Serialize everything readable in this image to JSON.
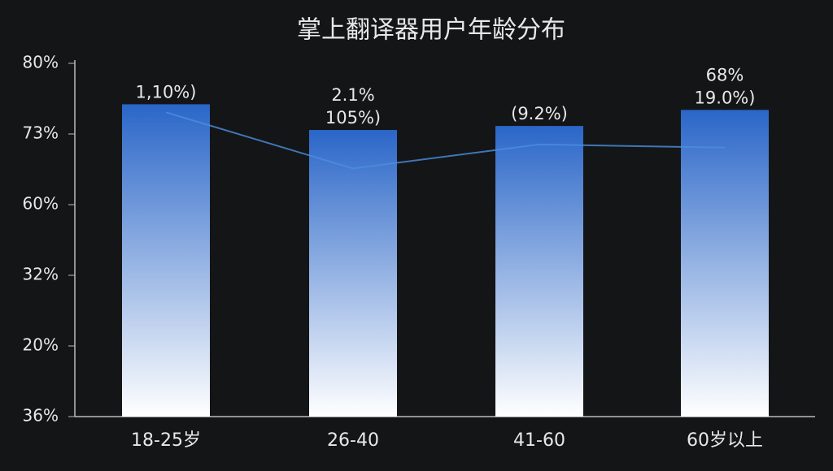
{
  "chart_data": {
    "type": "bar",
    "title": "掌上翻译器用户年龄分布",
    "categories": [
      "18-25岁",
      "26-40",
      "41-60",
      "60岁以上"
    ],
    "values": [
      74.9,
      71.7,
      72.2,
      74.2
    ],
    "value_labels": [
      [
        "1,10%)"
      ],
      [
        "2.1%",
        "105%)"
      ],
      [
        "(9.2%)"
      ],
      [
        "68%",
        "19.0%)"
      ]
    ],
    "line_values": [
      73.9,
      66.9,
      69.9,
      69.5
    ],
    "color": "#2a66c8",
    "ylim": [
      36,
      80
    ],
    "yticks": [
      {
        "value": 36,
        "label": "36%"
      },
      {
        "value": 80,
        "label": "80%"
      }
    ],
    "y_axis_labels": [
      "73%",
      "60%",
      "32%",
      "20%"
    ]
  }
}
